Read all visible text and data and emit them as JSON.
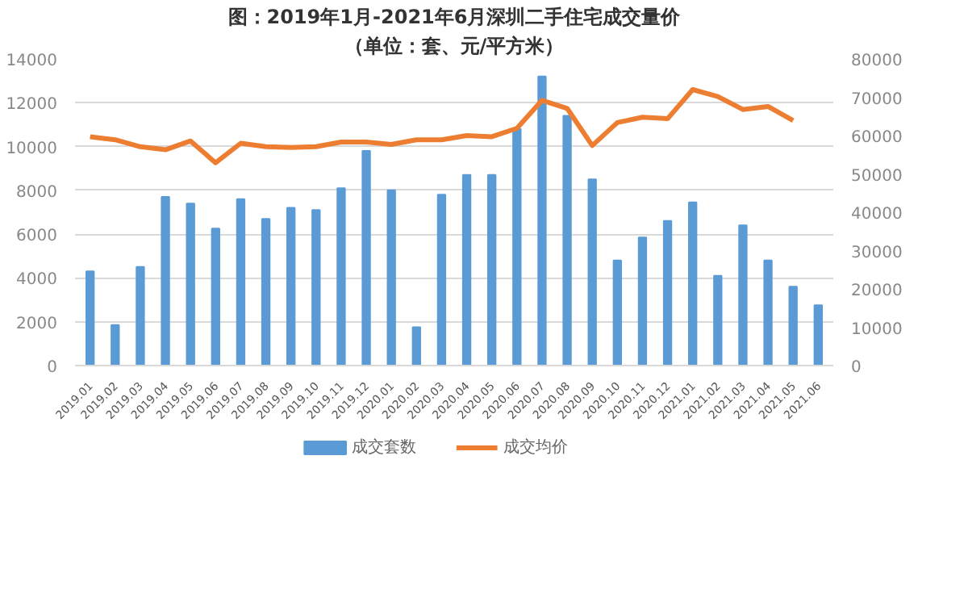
{
  "chart_data": {
    "type": "bar",
    "title": "图：2019年1月-2021年6月深圳二手住宅成交量价",
    "subtitle": "（单位：套、元/平方米）",
    "categories": [
      "2019.01",
      "2019.02",
      "2019.03",
      "2019.04",
      "2019.05",
      "2019.06",
      "2019.07",
      "2019.08",
      "2019.09",
      "2019.10",
      "2019.11",
      "2019.12",
      "2020.01",
      "2020.02",
      "2020.03",
      "2020.04",
      "2020.05",
      "2020.06",
      "2020.07",
      "2020.08",
      "2020.09",
      "2020.10",
      "2020.11",
      "2020.12",
      "2021.01",
      "2021.02",
      "2021.03",
      "2021.04",
      "2021.05",
      "2021.06"
    ],
    "series": [
      {
        "name": "成交套数",
        "color": "#5b9bd5",
        "values": [
          4300,
          1850,
          4500,
          7700,
          7400,
          6250,
          7600,
          6700,
          7200,
          7100,
          8100,
          9800,
          8000,
          1750,
          7800,
          8700,
          8700,
          10800,
          13200,
          11400,
          8500,
          4800,
          5850,
          6600,
          7450,
          4100,
          6400,
          4800,
          3600,
          2750
        ]
      },
      {
        "name": "成交均价",
        "type": "line",
        "axis": "y2",
        "color": "#ed7d31",
        "values": [
          59700,
          58900,
          57100,
          56300,
          58600,
          52900,
          58000,
          57100,
          56900,
          57100,
          58300,
          58300,
          57700,
          58900,
          58900,
          60000,
          59700,
          61900,
          69200,
          67100,
          57400,
          63400,
          64800,
          64400,
          72000,
          70200,
          66800,
          67600,
          63900,
          null
        ]
      }
    ],
    "ylim": [
      0,
      14000
    ],
    "yticks": [
      0,
      2000,
      4000,
      6000,
      8000,
      10000,
      12000,
      14000
    ],
    "y2lim": [
      0,
      80000
    ],
    "y2ticks": [
      0,
      10000,
      20000,
      30000,
      40000,
      50000,
      60000,
      70000,
      80000
    ],
    "grid": "y",
    "legend": "bottom"
  }
}
